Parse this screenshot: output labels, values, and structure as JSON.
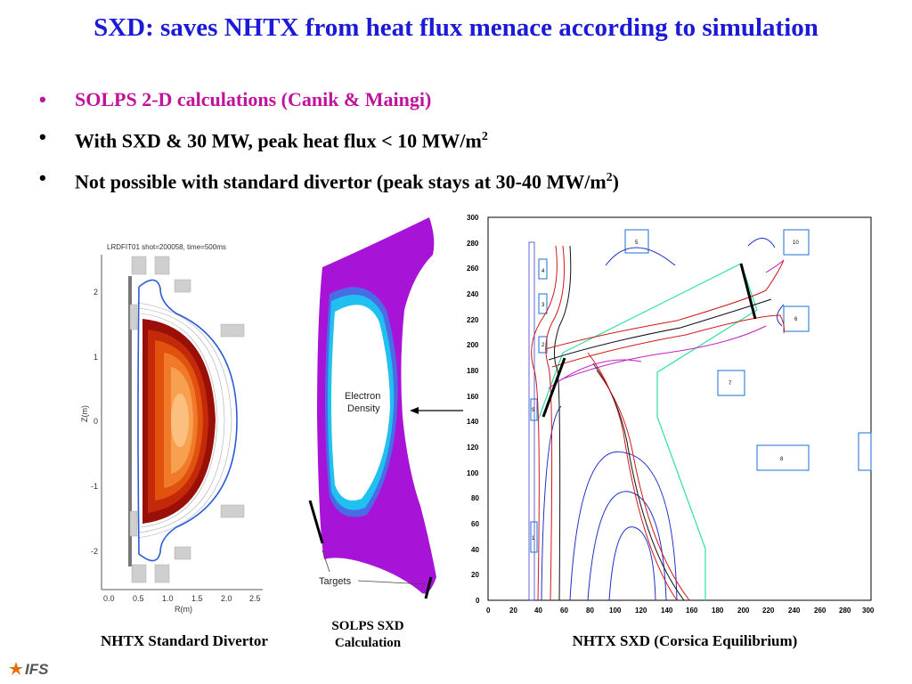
{
  "slide": {
    "title": "SXD: saves NHTX from heat flux menace according to simulation",
    "bullets": [
      {
        "text": "SOLPS 2-D calculations (Canik & Maingi)",
        "color": "#c0129a"
      },
      {
        "text": "With SXD & 30 MW, peak heat flux < 10 MW/m",
        "sup": "2"
      },
      {
        "text": "Not possible with standard divertor (peak stays at 30-40 MW/m",
        "sup": "2",
        "tail": ")"
      }
    ],
    "title_color": "#1a1ad8"
  },
  "figures": {
    "standard": {
      "header": "LRDFIT01 shot=200058, time=500ms",
      "ylabel": "Z(m)",
      "xlabel": "R(m)",
      "yticks": [
        "2",
        "1",
        "0",
        "-1",
        "-2"
      ],
      "xticks": [
        "0.0",
        "0.5",
        "1.0",
        "1.5",
        "2.0",
        "2.5"
      ],
      "caption": "NHTX Standard Divertor"
    },
    "solps": {
      "label_density": "Electron\nDensity",
      "label_density_1": "Electron",
      "label_density_2": "Density",
      "label_targets": "Targets",
      "caption_1": "SOLPS SXD",
      "caption_2": "Calculation"
    },
    "sxd": {
      "yticks": [
        "300",
        "280",
        "260",
        "240",
        "220",
        "200",
        "180",
        "160",
        "140",
        "120",
        "100",
        "80",
        "60",
        "40",
        "20",
        "0"
      ],
      "xticks": [
        "0",
        "20",
        "40",
        "60",
        "80",
        "100",
        "120",
        "140",
        "160",
        "180",
        "200",
        "220",
        "240",
        "260",
        "280",
        "300"
      ],
      "coil_labels": [
        "4",
        "3",
        "2",
        "9",
        "1",
        "5",
        "10",
        "6",
        "7",
        "8"
      ],
      "caption": "NHTX SXD (Corsica Equilibrium)"
    }
  },
  "logo": {
    "text": "IFS"
  }
}
